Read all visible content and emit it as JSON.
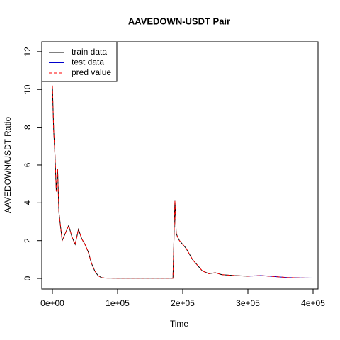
{
  "chart_data": {
    "type": "line",
    "title": "AAVEDOWN-USDT Pair",
    "xlabel": "Time",
    "ylabel": "AAVEDOWN/USDT  Ratio",
    "x": [
      0,
      2000,
      4000,
      6000,
      8000,
      10000,
      15000,
      20000,
      25000,
      30000,
      35000,
      40000,
      45000,
      50000,
      55000,
      60000,
      65000,
      70000,
      75000,
      80000,
      100000,
      150000,
      185000,
      188000,
      190000,
      192000,
      195000,
      200000,
      205000,
      210000,
      215000,
      220000,
      230000,
      240000,
      250000,
      260000,
      280000,
      300000,
      320000,
      340000,
      360000,
      380000,
      400000,
      405000
    ],
    "series": [
      {
        "name": "train data",
        "color": "#000000",
        "dash": false,
        "values": [
          10.2,
          7.8,
          6.5,
          4.6,
          5.8,
          3.5,
          2.0,
          2.4,
          2.8,
          2.2,
          1.8,
          2.6,
          2.1,
          1.8,
          1.4,
          0.8,
          0.4,
          0.15,
          0.05,
          0.02,
          0.01,
          0.01,
          0.01,
          4.1,
          2.4,
          2.2,
          2.0,
          1.8,
          1.6,
          1.3,
          1.0,
          0.8,
          0.4,
          0.25,
          0.3,
          0.2,
          0.15,
          0.12,
          null,
          null,
          null,
          null,
          null,
          null
        ]
      },
      {
        "name": "test data",
        "color": "#0000cc",
        "dash": false,
        "values": [
          null,
          null,
          null,
          null,
          null,
          null,
          null,
          null,
          null,
          null,
          null,
          null,
          null,
          null,
          null,
          null,
          null,
          null,
          null,
          null,
          null,
          null,
          null,
          null,
          null,
          null,
          null,
          null,
          null,
          null,
          null,
          null,
          null,
          null,
          null,
          null,
          null,
          0.12,
          0.15,
          0.1,
          0.05,
          0.03,
          0.02,
          0.02
        ]
      },
      {
        "name": "pred value",
        "color": "#ff0000",
        "dash": true,
        "values": [
          10.2,
          7.8,
          6.5,
          4.6,
          5.8,
          3.5,
          2.0,
          2.4,
          2.8,
          2.2,
          1.8,
          2.6,
          2.1,
          1.8,
          1.4,
          0.8,
          0.4,
          0.15,
          0.05,
          0.02,
          0.01,
          0.01,
          0.01,
          4.1,
          2.4,
          2.2,
          2.0,
          1.8,
          1.6,
          1.3,
          1.0,
          0.8,
          0.4,
          0.25,
          0.3,
          0.2,
          0.15,
          0.12,
          0.15,
          0.1,
          0.05,
          0.03,
          0.02,
          0.02
        ]
      }
    ],
    "xlim": [
      -16300,
      407600
    ],
    "ylim": [
      -0.56,
      12.52
    ],
    "xticks": [
      {
        "value": 0,
        "label": "0e+00"
      },
      {
        "value": 100000,
        "label": "1e+05"
      },
      {
        "value": 200000,
        "label": "2e+05"
      },
      {
        "value": 300000,
        "label": "3e+05"
      },
      {
        "value": 400000,
        "label": "4e+05"
      }
    ],
    "yticks": [
      0,
      2,
      4,
      6,
      8,
      10,
      12
    ],
    "legend": "top-left"
  }
}
